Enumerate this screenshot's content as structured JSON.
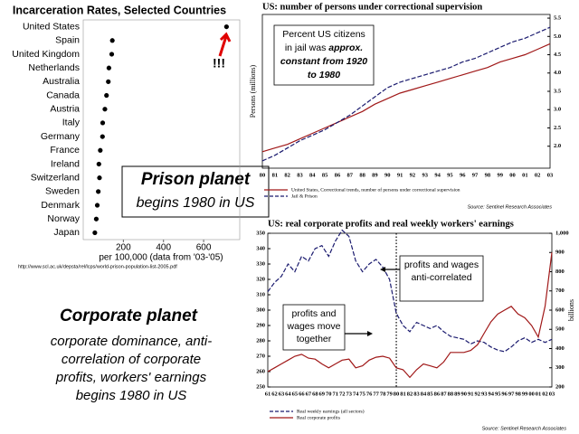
{
  "chart_data": [
    {
      "type": "dot",
      "title": "Incarceration Rates, Selected Countries",
      "categories": [
        "United States",
        "Spain",
        "United Kingdom",
        "Netherlands",
        "Australia",
        "Canada",
        "Austria",
        "Italy",
        "Germany",
        "France",
        "Ireland",
        "Switzerland",
        "Sweden",
        "Denmark",
        "Norway",
        "Japan"
      ],
      "values": [
        714,
        145,
        142,
        128,
        125,
        116,
        108,
        97,
        96,
        85,
        78,
        81,
        75,
        70,
        65,
        58
      ],
      "color": "#000000",
      "xlim": [
        0,
        780
      ],
      "xticks": [
        200,
        400,
        600
      ],
      "x_label": "per 100,000 (data from '03-'05)",
      "source": "http://www.scl.ac.uk/depsta/rel/lcps/world-prison-population-list-2005.pdf",
      "annotation": "!!!",
      "annotation_color": "#e00000"
    },
    {
      "type": "line",
      "title": "US: number of persons under correctional supervision",
      "categories": [
        "80",
        "81",
        "82",
        "83",
        "84",
        "85",
        "86",
        "87",
        "88",
        "89",
        "90",
        "91",
        "92",
        "93",
        "94",
        "95",
        "96",
        "97",
        "98",
        "99",
        "00",
        "01",
        "02",
        "03"
      ],
      "series": [
        {
          "name": "United States, Correctional trends, number of persons under correctional supervision",
          "color": "#a01818",
          "dash": false,
          "values": [
            1.85,
            1.95,
            2.05,
            2.2,
            2.35,
            2.5,
            2.65,
            2.8,
            2.95,
            3.15,
            3.3,
            3.45,
            3.55,
            3.65,
            3.75,
            3.85,
            3.95,
            4.05,
            4.15,
            4.3,
            4.4,
            4.5,
            4.65,
            4.8
          ]
        },
        {
          "name": "Jail & Prison",
          "color": "#1a1a6e",
          "dash": true,
          "values": [
            1.6,
            1.75,
            1.95,
            2.15,
            2.3,
            2.45,
            2.65,
            2.85,
            3.1,
            3.35,
            3.6,
            3.75,
            3.85,
            3.95,
            4.05,
            4.15,
            4.3,
            4.4,
            4.55,
            4.7,
            4.85,
            4.95,
            5.1,
            5.25
          ]
        }
      ],
      "ylim": [
        1.4,
        5.6
      ],
      "yticks": [
        {
          "value": 2,
          "label": "2.0"
        },
        2.5,
        {
          "value": 3,
          "label": "3.0"
        },
        3.5,
        {
          "value": 4,
          "label": "4.0"
        },
        4.5,
        {
          "value": 5,
          "label": "5.0"
        },
        5.5
      ],
      "y_label": "Persons (millions)",
      "source": "Source: Sentinel Research Associates",
      "annotation_lines": [
        [
          "Percent US citizens"
        ],
        [
          "in jail was ",
          "approx."
        ],
        [
          "constant",
          " from 1920"
        ],
        [
          "to 1980"
        ]
      ]
    },
    {
      "type": "line",
      "title": "US: real corporate profits and real weekly workers' earnings",
      "categories": [
        "61",
        "62",
        "63",
        "64",
        "65",
        "66",
        "67",
        "68",
        "69",
        "70",
        "71",
        "72",
        "73",
        "74",
        "75",
        "76",
        "77",
        "78",
        "79",
        "80",
        "81",
        "82",
        "83",
        "84",
        "85",
        "86",
        "87",
        "88",
        "89",
        "90",
        "91",
        "92",
        "93",
        "94",
        "95",
        "96",
        "97",
        "98",
        "99",
        "00",
        "01",
        "02",
        "03"
      ],
      "series": [
        {
          "name": "Real weekly earnings (all sectors)",
          "color": "#1a1a6e",
          "dash": true,
          "axis": "y",
          "values": [
            312,
            318,
            322,
            330,
            325,
            335,
            332,
            340,
            342,
            335,
            345,
            352,
            348,
            332,
            325,
            330,
            333,
            328,
            320,
            298,
            290,
            286,
            292,
            290,
            288,
            290,
            286,
            283,
            282,
            281,
            278,
            280,
            279,
            276,
            274,
            273,
            276,
            280,
            282,
            279,
            281,
            279,
            281
          ]
        },
        {
          "name": "Real corporate profits",
          "color": "#a01818",
          "dash": false,
          "axis": "y2",
          "values": [
            280,
            300,
            320,
            340,
            360,
            370,
            350,
            345,
            320,
            300,
            320,
            340,
            345,
            300,
            310,
            340,
            355,
            360,
            350,
            300,
            290,
            250,
            290,
            320,
            310,
            300,
            330,
            380,
            380,
            380,
            390,
            420,
            480,
            540,
            580,
            600,
            620,
            580,
            560,
            520,
            460,
            620,
            900
          ]
        }
      ],
      "ylim": [
        250,
        350
      ],
      "yticks": [
        250,
        260,
        270,
        280,
        290,
        300,
        310,
        320,
        330,
        340,
        350
      ],
      "y2lim": [
        200,
        1000
      ],
      "y2ticks": [
        200,
        300,
        400,
        500,
        600,
        700,
        800,
        900,
        {
          "value": 1000,
          "label": "1,000"
        }
      ],
      "y2_label": "billions",
      "source": "Source: Sentinel Research Associates",
      "annotations": [
        "profits and wages anti-correlated",
        "profits and wages move together"
      ]
    }
  ],
  "slide": {
    "prison_title": "Prison planet",
    "prison_sub": "begins 1980 in US",
    "corp_title": "Corporate planet",
    "corp_lines": [
      "corporate dominance, anti-",
      "correlation of corporate",
      "profits, workers' earnings",
      "begins 1980 in US"
    ]
  }
}
